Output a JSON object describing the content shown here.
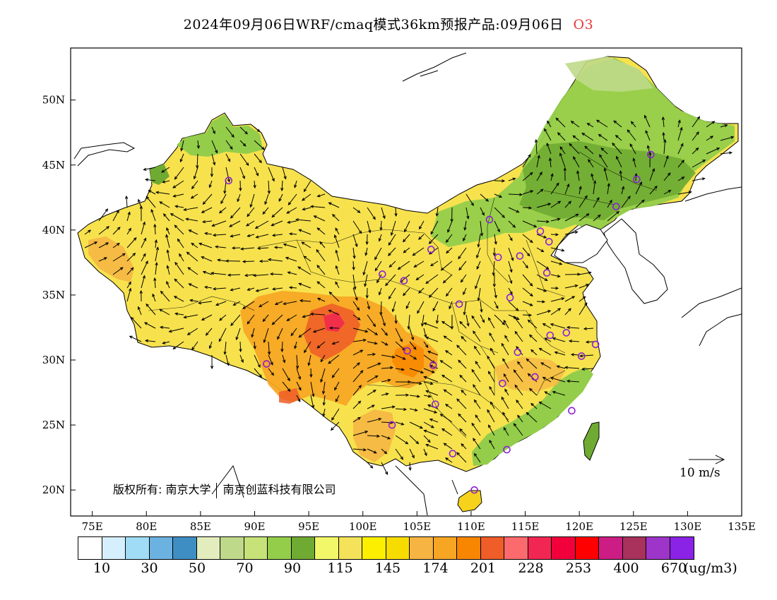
{
  "title": {
    "text": "2024年09月06日WRF/cmaq模式36km预报产品:09月06日",
    "pollutant": "O3",
    "pollutant_color": "#e23b3b"
  },
  "map": {
    "type": "forecast-concentration-map",
    "lat_ticks": [
      "50N",
      "45N",
      "40N",
      "35N",
      "30N",
      "25N",
      "20N"
    ],
    "lon_ticks": [
      "75E",
      "80E",
      "85E",
      "90E",
      "95E",
      "100E",
      "105E",
      "110E",
      "115E",
      "120E",
      "125E",
      "130E",
      "135E"
    ],
    "lon_range": [
      73,
      135
    ],
    "lat_range": [
      18,
      54
    ],
    "copyright": {
      "part1": "版权所有: 南京大学",
      "part2": "南京创蓝科技有限公司"
    },
    "wind_scale_label": "10 m/s",
    "stations": [
      {
        "lon": 87.6,
        "lat": 43.8
      },
      {
        "lon": 101.8,
        "lat": 36.6
      },
      {
        "lon": 103.8,
        "lat": 36.1
      },
      {
        "lon": 106.3,
        "lat": 38.5
      },
      {
        "lon": 111.7,
        "lat": 40.8
      },
      {
        "lon": 112.5,
        "lat": 37.9
      },
      {
        "lon": 114.5,
        "lat": 38.0
      },
      {
        "lon": 116.4,
        "lat": 39.9
      },
      {
        "lon": 117.2,
        "lat": 39.1
      },
      {
        "lon": 108.9,
        "lat": 34.3
      },
      {
        "lon": 113.6,
        "lat": 34.8
      },
      {
        "lon": 117.0,
        "lat": 36.7
      },
      {
        "lon": 104.1,
        "lat": 30.7
      },
      {
        "lon": 106.5,
        "lat": 29.6
      },
      {
        "lon": 114.3,
        "lat": 30.6
      },
      {
        "lon": 117.3,
        "lat": 31.9
      },
      {
        "lon": 118.8,
        "lat": 32.1
      },
      {
        "lon": 120.2,
        "lat": 30.3
      },
      {
        "lon": 121.5,
        "lat": 31.2
      },
      {
        "lon": 112.9,
        "lat": 28.2
      },
      {
        "lon": 115.9,
        "lat": 28.7
      },
      {
        "lon": 119.3,
        "lat": 26.1
      },
      {
        "lon": 106.7,
        "lat": 26.6
      },
      {
        "lon": 102.7,
        "lat": 25.0
      },
      {
        "lon": 108.3,
        "lat": 22.8
      },
      {
        "lon": 113.3,
        "lat": 23.1
      },
      {
        "lon": 110.3,
        "lat": 20.0
      },
      {
        "lon": 91.1,
        "lat": 29.7
      },
      {
        "lon": 126.6,
        "lat": 45.8
      },
      {
        "lon": 125.3,
        "lat": 43.9
      },
      {
        "lon": 123.4,
        "lat": 41.8
      }
    ],
    "station_color": "#8b1fd6"
  },
  "colorbar": {
    "colors": [
      "#ffffff",
      "#d6efff",
      "#a0dcf5",
      "#6cb2e0",
      "#3e8ec4",
      "#e2ecbd",
      "#bfd98a",
      "#c6e278",
      "#93cd4a",
      "#6fab32",
      "#f2f76a",
      "#f3e25a",
      "#fcef00",
      "#f7dc00",
      "#f6b443",
      "#f6a623",
      "#f98600",
      "#ef5d28",
      "#fb6a6d",
      "#f22652",
      "#f2003c",
      "#ff0000",
      "#cc1d85",
      "#a8325b",
      "#9d35c9",
      "#8b23e6"
    ],
    "labels": [
      "10",
      "30",
      "50",
      "70",
      "90",
      "115",
      "145",
      "174",
      "201",
      "228",
      "253",
      "400",
      "670"
    ],
    "unit": "(ug/m3)"
  }
}
